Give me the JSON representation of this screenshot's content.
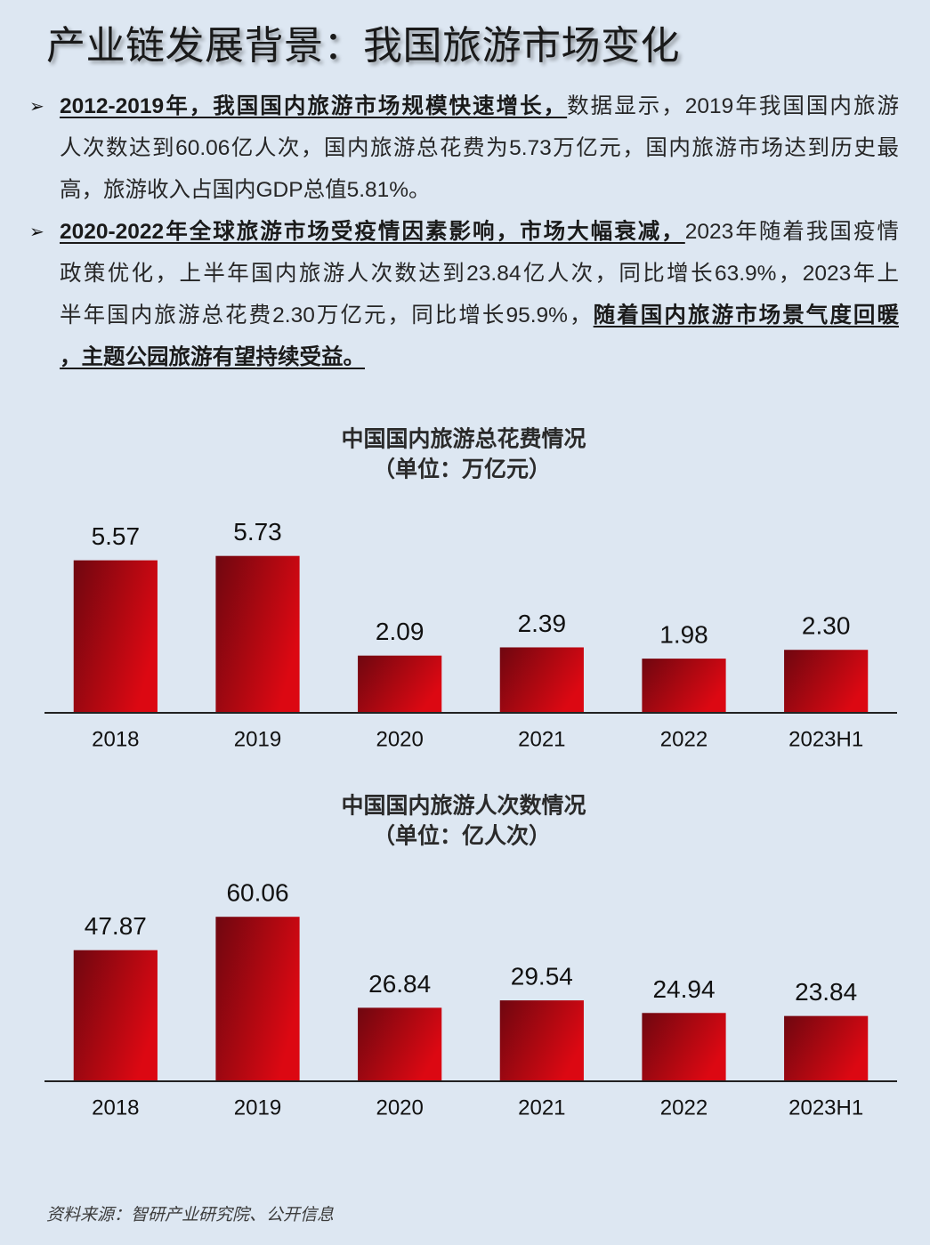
{
  "page": {
    "title": "产业链发展背景：我国旅游市场变化",
    "background": "#dde7f2"
  },
  "bullets": [
    {
      "marker": "➢",
      "lines": [
        {
          "em": "2012-2019年，我国国内旅游市场规模快速增长，",
          "text": "数据显示，2019年我国国内旅游"
        },
        {
          "text": "人次数达到60.06亿人次，国内旅游总花费为5.73万亿元，国内旅游市场达到历史最"
        },
        {
          "text": "高，旅游收入占国内GDP总值5.81%。"
        }
      ]
    },
    {
      "marker": "➢",
      "lines": [
        {
          "em": "2020-2022年全球旅游市场受疫情因素影响，市场大幅衰减，",
          "text": "2023年随着我国疫情"
        },
        {
          "text": "政策优化，上半年国内旅游人次数达到23.84亿人次，同比增长63.9%，2023年上"
        },
        {
          "text": "半年国内旅游总花费2.30万亿元，同比增长95.9%，",
          "em": "随着国内旅游市场景气度回暖"
        },
        {
          "em": "，主题公园旅游有望持续受益。"
        }
      ]
    }
  ],
  "chart_data": [
    {
      "type": "bar",
      "title": "中国国内旅游总花费情况",
      "subtitle": "（单位：万亿元）",
      "categories": [
        "2018",
        "2019",
        "2020",
        "2021",
        "2022",
        "2023H1"
      ],
      "values": [
        5.57,
        5.73,
        2.09,
        2.39,
        1.98,
        2.3
      ],
      "data_labels": [
        "5.57",
        "5.73",
        "2.09",
        "2.39",
        "1.98",
        "2.30"
      ],
      "ylim": [
        0,
        6.5
      ],
      "grid": false,
      "legend": "none",
      "bar_colors": [
        "#6f0710",
        "#dc0812"
      ]
    },
    {
      "type": "bar",
      "title": "中国国内旅游人次数情况",
      "subtitle": "（单位：亿人次）",
      "categories": [
        "2018",
        "2019",
        "2020",
        "2021",
        "2022",
        "2023H1"
      ],
      "values": [
        47.87,
        60.06,
        26.84,
        29.54,
        24.94,
        23.84
      ],
      "data_labels": [
        "47.87",
        "60.06",
        "26.84",
        "29.54",
        "24.94",
        "23.84"
      ],
      "ylim": [
        0,
        65
      ],
      "grid": false,
      "legend": "none",
      "bar_colors": [
        "#6f0710",
        "#dc0812"
      ]
    }
  ],
  "source": "资料来源：智研产业研究院、公开信息"
}
